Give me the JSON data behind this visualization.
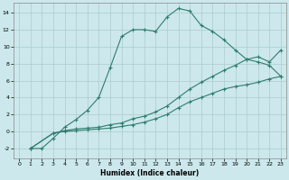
{
  "xlabel": "Humidex (Indice chaleur)",
  "xlim": [
    -0.5,
    23.5
  ],
  "ylim": [
    -3.2,
    15.2
  ],
  "yticks": [
    -2,
    0,
    2,
    4,
    6,
    8,
    10,
    12,
    14
  ],
  "xticks": [
    0,
    1,
    2,
    3,
    4,
    5,
    6,
    7,
    8,
    9,
    10,
    11,
    12,
    13,
    14,
    15,
    16,
    17,
    18,
    19,
    20,
    21,
    22,
    23
  ],
  "background_color": "#cce8ec",
  "grid_color": "#aacccc",
  "line_color": "#2e7d6e",
  "line1_x": [
    1,
    2,
    3,
    4,
    5,
    6,
    7,
    8,
    9,
    10,
    11,
    12,
    13,
    14,
    15,
    16,
    17,
    18,
    19,
    20,
    21,
    22,
    23
  ],
  "line1_y": [
    -2.0,
    -2.0,
    -0.8,
    0.5,
    1.4,
    2.5,
    4.0,
    7.5,
    11.2,
    12.0,
    12.0,
    11.8,
    13.5,
    14.5,
    14.2,
    12.5,
    11.8,
    10.8,
    9.6,
    8.5,
    8.2,
    7.8,
    6.5
  ],
  "line2_x": [
    1,
    3,
    4,
    5,
    6,
    7,
    8,
    9,
    10,
    11,
    12,
    13,
    14,
    15,
    16,
    17,
    18,
    19,
    20,
    21,
    22,
    23
  ],
  "line2_y": [
    -2.0,
    -0.2,
    0.1,
    0.3,
    0.4,
    0.5,
    0.8,
    1.0,
    1.5,
    1.8,
    2.3,
    3.0,
    4.0,
    5.0,
    5.8,
    6.5,
    7.2,
    7.8,
    8.5,
    8.8,
    8.2,
    9.6
  ],
  "line3_x": [
    1,
    3,
    4,
    5,
    6,
    7,
    8,
    9,
    10,
    11,
    12,
    13,
    14,
    15,
    16,
    17,
    18,
    19,
    20,
    21,
    22,
    23
  ],
  "line3_y": [
    -2.0,
    -0.2,
    0.0,
    0.1,
    0.2,
    0.3,
    0.4,
    0.6,
    0.8,
    1.1,
    1.5,
    2.0,
    2.8,
    3.5,
    4.0,
    4.5,
    5.0,
    5.3,
    5.5,
    5.8,
    6.2,
    6.5
  ]
}
